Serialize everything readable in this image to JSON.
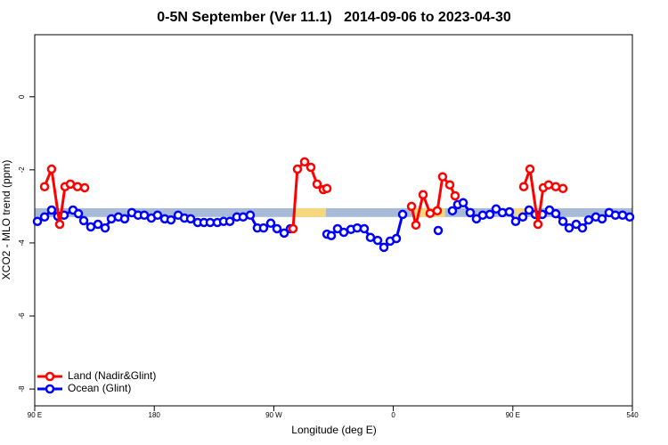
{
  "chart_data": {
    "type": "line",
    "title": "0-5N September (Ver 11.1)   2014-09-06 to 2023-04-30",
    "x_label": "Longitude (deg E)",
    "y_label": "XCO2 - MLO trend (ppm)",
    "xlim": [
      90,
      540
    ],
    "ylim": [
      -8.46,
      1.7
    ],
    "xticks": [
      {
        "value": 90,
        "label": "90 E"
      },
      180,
      {
        "value": 270,
        "label": "90 W"
      },
      {
        "value": 360,
        "label": "0"
      },
      {
        "value": 450,
        "label": "90 E"
      },
      540
    ],
    "yticks": [
      -8,
      -6,
      -4,
      -2,
      0
    ],
    "band": {
      "y": [
        -3.29,
        -3.05
      ],
      "color": "#a7bad8",
      "land_ranges": [
        [
          284.5,
          309.3
        ],
        [
          375,
          399
        ],
        [
          451,
          459
        ]
      ],
      "land_color": "#f6d77e"
    },
    "legend": "bottom-left",
    "series": [
      {
        "name": "Land (Nadir&Glint)",
        "color": "#ff0000",
        "x": [
          97.4,
          102.7,
          108.8,
          112.8,
          116.8,
          122.2,
          127.6,
          null,
          284.5,
          287.8,
          293.2,
          297.9,
          302.6,
          307.3,
          310.0,
          null,
          373.7,
          377.0,
          382.4,
          387.7,
          393.1,
          397.1,
          402.5,
          406.5,
          null,
          458.2,
          462.9,
          468.9,
          472.9,
          476.9,
          482.3,
          487.7
        ],
        "values": [
          -2.46,
          -1.98,
          -3.49,
          -2.46,
          -2.39,
          -2.46,
          -2.49,
          null,
          -3.61,
          -1.98,
          -1.78,
          -1.93,
          -2.39,
          -2.54,
          -2.51,
          null,
          -3.0,
          -3.51,
          -2.68,
          -3.19,
          -3.12,
          -2.19,
          -2.41,
          -2.71,
          null,
          -2.46,
          -1.98,
          -3.49,
          -2.49,
          -2.41,
          -2.46,
          -2.51
        ]
      },
      {
        "name": "Ocean (Glint)",
        "color": "#0000ff",
        "x": [
          92.0,
          97.4,
          102.7,
          107.4,
          112.1,
          118.8,
          122.9,
          126.9,
          132.2,
          137.6,
          143.0,
          147.7,
          153.0,
          157.7,
          163.1,
          167.8,
          172.5,
          177.8,
          182.5,
          187.9,
          192.6,
          198.0,
          202.7,
          207.4,
          212.7,
          217.4,
          222.1,
          227.5,
          232.2,
          236.9,
          242.2,
          246.9,
          252.3,
          257.6,
          262.3,
          267.7,
          272.4,
          277.8,
          282.5,
          null,
          310.0,
          313.3,
          318.0,
          322.7,
          328.1,
          332.8,
          338.1,
          342.8,
          348.2,
          352.9,
          357.6,
          362.3,
          367.0,
          null,
          393.8,
          null,
          404.5,
          408.5,
          412.6,
          417.9,
          422.6,
          427.3,
          432.7,
          437.4,
          442.1,
          447.4,
          452.1,
          457.5,
          462.2,
          466.9,
          472.2,
          477.6,
          482.3,
          487.7,
          492.4,
          497.7,
          502.4,
          507.1,
          512.5,
          517.2,
          522.5,
          527.2,
          532.6,
          538.0
        ],
        "values": [
          -3.41,
          -3.29,
          -3.1,
          -3.27,
          -3.24,
          -3.1,
          -3.2,
          -3.39,
          -3.56,
          -3.49,
          -3.59,
          -3.34,
          -3.29,
          -3.34,
          -3.17,
          -3.24,
          -3.24,
          -3.32,
          -3.24,
          -3.34,
          -3.37,
          -3.24,
          -3.32,
          -3.34,
          -3.44,
          -3.44,
          -3.44,
          -3.44,
          -3.41,
          -3.41,
          -3.29,
          -3.29,
          -3.24,
          -3.59,
          -3.59,
          -3.46,
          -3.61,
          -3.73,
          -3.61,
          null,
          -3.76,
          -3.8,
          -3.61,
          -3.71,
          -3.63,
          -3.59,
          -3.61,
          -3.85,
          -3.93,
          -4.12,
          -3.95,
          -3.88,
          -3.22,
          null,
          -3.66,
          null,
          -3.12,
          -2.95,
          -2.9,
          -3.17,
          -3.34,
          -3.24,
          -3.22,
          -3.07,
          -3.17,
          -3.15,
          -3.41,
          -3.29,
          -3.1,
          -3.22,
          -3.22,
          -3.1,
          -3.2,
          -3.41,
          -3.59,
          -3.49,
          -3.59,
          -3.37,
          -3.29,
          -3.34,
          -3.17,
          -3.24,
          -3.24,
          -3.29
        ]
      }
    ]
  }
}
